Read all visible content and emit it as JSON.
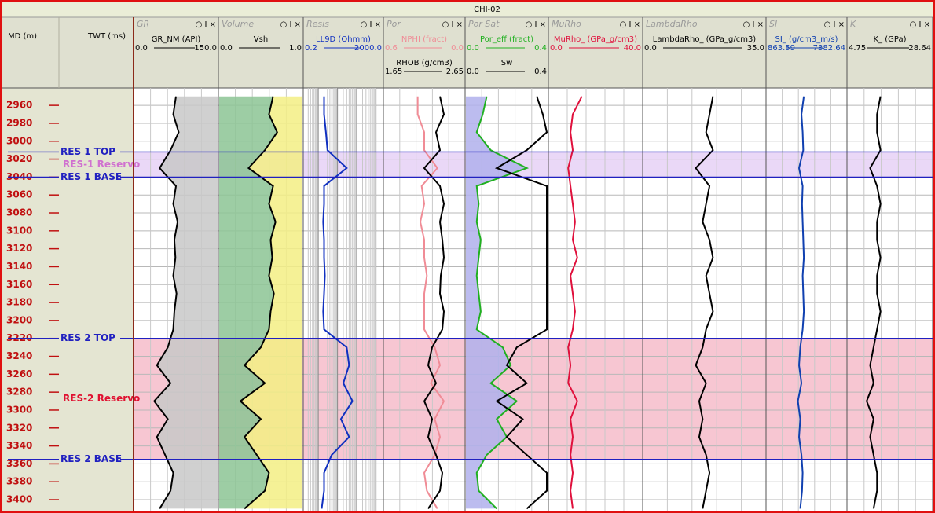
{
  "chart_data": {
    "type": "well-log",
    "title": "CHI-02",
    "depth_label": "MD (m)",
    "time_label": "TWT (ms)",
    "ylim": [
      2940.6,
      3414.0
    ],
    "depth_ticks": [
      2960,
      2980,
      3000,
      3020,
      3040,
      3060,
      3080,
      3100,
      3120,
      3140,
      3160,
      3180,
      3200,
      3220,
      3240,
      3260,
      3280,
      3300,
      3320,
      3340,
      3360,
      3380,
      3400
    ],
    "track_controls": "○ I ×",
    "sample_depths": [
      2950,
      2970,
      2990,
      3010,
      3030,
      3050,
      3070,
      3090,
      3110,
      3130,
      3150,
      3170,
      3190,
      3210,
      3230,
      3250,
      3270,
      3290,
      3310,
      3330,
      3350,
      3370,
      3390,
      3410
    ],
    "zones": [
      {
        "name": "RES-1 Reservo",
        "top_label": "RES 1 TOP",
        "base_label": "RES 1 BASE",
        "top": 3012,
        "base": 3040,
        "color": "#ead8f7",
        "name_color": "#d070d0"
      },
      {
        "name": "RES-2 Reservo",
        "top_label": "RES 2 TOP",
        "base_label": "RES 2 BASE",
        "top": 3220,
        "base": 3355,
        "color": "#f7c6d2",
        "name_color": "#e01030"
      }
    ],
    "tracks": [
      {
        "name": "GR",
        "log": false,
        "curves": [
          {
            "name": "GR_NM (API)",
            "min": {
              "value": 0,
              "label": "0.0"
            },
            "max": {
              "value": 150,
              "label": "150.0"
            },
            "color": "#000000",
            "fill_right": "#c8c8c8",
            "values": [
              75,
              70,
              80,
              65,
              45,
              75,
              70,
              78,
              72,
              74,
              70,
              76,
              72,
              70,
              60,
              40,
              65,
              35,
              60,
              40,
              55,
              70,
              65,
              45
            ]
          }
        ]
      },
      {
        "name": "Volume",
        "log": false,
        "curves": [
          {
            "name": "Vsh",
            "min": {
              "value": 0,
              "label": "0.0"
            },
            "max": {
              "value": 1,
              "label": "1.0"
            },
            "color": "#000000",
            "fill_left": "#8cc494",
            "fill_right": "#f3ef84",
            "values": [
              0.65,
              0.6,
              0.7,
              0.55,
              0.35,
              0.65,
              0.6,
              0.68,
              0.62,
              0.64,
              0.6,
              0.66,
              0.62,
              0.6,
              0.5,
              0.3,
              0.55,
              0.25,
              0.5,
              0.3,
              0.45,
              0.6,
              0.55,
              0.3
            ]
          }
        ]
      },
      {
        "name": "Resis",
        "log": true,
        "curves": [
          {
            "name": "LL9D (Ohmm)",
            "min": 0.2,
            "max": {
              "value": 2000,
              "label": "2000.0"
            },
            "color": "#1030c0",
            "values": [
              2,
              2,
              2.5,
              3,
              30,
              2,
              2,
              1.8,
              2,
              2,
              2.2,
              2,
              1.8,
              2,
              30,
              40,
              20,
              60,
              15,
              40,
              5,
              2,
              2,
              1.5
            ]
          }
        ]
      },
      {
        "name": "Por",
        "log": false,
        "curves": [
          {
            "name": "NPHI (fract)",
            "min": 0.6,
            "max": {
              "value": 0,
              "label": "0.0"
            },
            "color": "#f08c96",
            "values": [
              0.35,
              0.35,
              0.3,
              0.3,
              0.2,
              0.32,
              0.3,
              0.33,
              0.3,
              0.3,
              0.28,
              0.3,
              0.3,
              0.3,
              0.22,
              0.18,
              0.25,
              0.15,
              0.22,
              0.18,
              0.22,
              0.3,
              0.28,
              0.2
            ]
          },
          {
            "name": "RHOB (g/cm3)",
            "min": 1.65,
            "max": 2.65,
            "color": "#000000",
            "values": [
              2.35,
              2.4,
              2.3,
              2.35,
              2.15,
              2.35,
              2.4,
              2.35,
              2.38,
              2.4,
              2.36,
              2.35,
              2.4,
              2.38,
              2.25,
              2.2,
              2.3,
              2.15,
              2.25,
              2.2,
              2.3,
              2.38,
              2.35,
              2.2
            ]
          }
        ]
      },
      {
        "name": "Por Sat",
        "log": false,
        "curves": [
          {
            "name": "Por_eff (fract)",
            "min": {
              "value": 0,
              "label": "0.0"
            },
            "max": 0.4,
            "color": "#20b020",
            "fill_left": "#b0b0ec",
            "values": [
              0.1,
              0.08,
              0.05,
              0.12,
              0.3,
              0.05,
              0.06,
              0.05,
              0.07,
              0.06,
              0.05,
              0.06,
              0.07,
              0.05,
              0.18,
              0.22,
              0.12,
              0.25,
              0.15,
              0.2,
              0.1,
              0.05,
              0.06,
              0.15
            ]
          },
          {
            "name": "Sw",
            "min": {
              "value": 0,
              "label": "0.0"
            },
            "max": 0.4,
            "color": "#000000",
            "values": [
              0.35,
              0.38,
              0.4,
              0.3,
              0.15,
              0.4,
              0.4,
              0.4,
              0.4,
              0.4,
              0.4,
              0.4,
              0.4,
              0.4,
              0.25,
              0.2,
              0.3,
              0.15,
              0.28,
              0.2,
              0.3,
              0.4,
              0.4,
              0.3
            ]
          }
        ]
      },
      {
        "name": "MuRho",
        "log": false,
        "curves": [
          {
            "name": "MuRho_ (GPa_g/cm3)",
            "min": {
              "value": 0,
              "label": "0.0"
            },
            "max": {
              "value": 40,
              "label": "40.0"
            },
            "color": "#e0103c",
            "values": [
              14,
              10,
              9,
              10,
              8,
              9,
              10,
              11,
              10,
              12,
              9,
              10,
              11,
              10,
              8,
              9,
              8,
              12,
              9,
              10,
              9,
              10,
              9,
              10
            ]
          }
        ]
      },
      {
        "name": "LambdaRho",
        "log": false,
        "curves": [
          {
            "name": "LambdaRho_ (GPa_g/cm3)",
            "min": {
              "value": 0,
              "label": "0.0"
            },
            "max": {
              "value": 35,
              "label": "35.0"
            },
            "color": "#000000",
            "values": [
              20,
              19,
              18,
              20,
              15,
              19,
              18,
              17,
              19,
              20,
              18,
              19,
              20,
              18,
              17,
              15,
              18,
              16,
              17,
              16,
              18,
              19,
              18,
              17
            ]
          }
        ]
      },
      {
        "name": "SI",
        "log": false,
        "curves": [
          {
            "name": "SI_ (g/cm3_m/s)",
            "min": 863.59,
            "max": 7382.64,
            "color": "#1040b0",
            "values": [
              3900,
              3700,
              3800,
              3850,
              3500,
              3800,
              3750,
              3800,
              3850,
              3900,
              3800,
              3850,
              3900,
              3800,
              3600,
              3500,
              3700,
              3400,
              3600,
              3500,
              3700,
              3800,
              3750,
              3600
            ]
          }
        ]
      },
      {
        "name": "K",
        "log": false,
        "curves": [
          {
            "name": "K_ (GPa)",
            "min": 4.75,
            "max": 28.64,
            "color": "#000000",
            "values": [
              14,
              13,
              13,
              14,
              11,
              13,
              14,
              13,
              13,
              14,
              13,
              13,
              14,
              13,
              12,
              11,
              12,
              10,
              12,
              11,
              12,
              13,
              13,
              12
            ]
          }
        ]
      }
    ]
  }
}
